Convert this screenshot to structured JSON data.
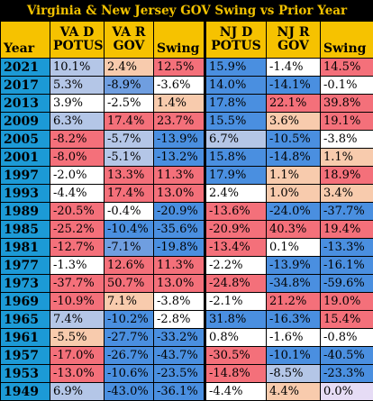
{
  "title": "Virginia & New Jersey GOV Swing vs Prior Year",
  "headers": [
    {
      "line1": "Year",
      "line2": ""
    },
    {
      "line1": "VA D",
      "line2": "POTUS"
    },
    {
      "line1": "VA R",
      "line2": "GOV"
    },
    {
      "line1": "Swing",
      "line2": ""
    },
    {
      "line1": "NJ D",
      "line2": "POTUS"
    },
    {
      "line1": "NJ R",
      "line2": "GOV"
    },
    {
      "line1": "Swing",
      "line2": ""
    }
  ],
  "rows": [
    {
      "year": "2021",
      "cells": [
        {
          "t": "10.1%",
          "c": "#b4c6e7"
        },
        {
          "t": "2.4%",
          "c": "#f8cbad"
        },
        {
          "t": "12.5%",
          "c": "#f4707a"
        },
        {
          "t": "15.9%",
          "c": "#4a8fe0"
        },
        {
          "t": "-1.4%",
          "c": "#ffffff"
        },
        {
          "t": "14.5%",
          "c": "#f4707a"
        }
      ]
    },
    {
      "year": "2017",
      "cells": [
        {
          "t": "5.3%",
          "c": "#b4c6e7"
        },
        {
          "t": "-8.9%",
          "c": "#6f9ee0"
        },
        {
          "t": "-3.6%",
          "c": "#ffffff"
        },
        {
          "t": "14.0%",
          "c": "#4a8fe0"
        },
        {
          "t": "-14.1%",
          "c": "#4a8fe0"
        },
        {
          "t": "-0.1%",
          "c": "#ffffff"
        }
      ]
    },
    {
      "year": "2013",
      "cells": [
        {
          "t": "3.9%",
          "c": "#ffffff"
        },
        {
          "t": "-2.5%",
          "c": "#ffffff"
        },
        {
          "t": "1.4%",
          "c": "#f8cbad"
        },
        {
          "t": "17.8%",
          "c": "#4a8fe0"
        },
        {
          "t": "22.1%",
          "c": "#f4707a"
        },
        {
          "t": "39.8%",
          "c": "#f4707a"
        }
      ]
    },
    {
      "year": "2009",
      "cells": [
        {
          "t": "6.3%",
          "c": "#b4c6e7"
        },
        {
          "t": "17.4%",
          "c": "#f4707a"
        },
        {
          "t": "23.7%",
          "c": "#f4707a"
        },
        {
          "t": "15.5%",
          "c": "#4a8fe0"
        },
        {
          "t": "3.6%",
          "c": "#f8cbad"
        },
        {
          "t": "19.1%",
          "c": "#f4707a"
        }
      ]
    },
    {
      "year": "2005",
      "cells": [
        {
          "t": "-8.2%",
          "c": "#f4707a"
        },
        {
          "t": "-5.7%",
          "c": "#b4c6e7"
        },
        {
          "t": "-13.9%",
          "c": "#4a8fe0"
        },
        {
          "t": "6.7%",
          "c": "#b4c6e7"
        },
        {
          "t": "-10.5%",
          "c": "#4a8fe0"
        },
        {
          "t": "-3.8%",
          "c": "#ffffff"
        }
      ]
    },
    {
      "year": "2001",
      "cells": [
        {
          "t": "-8.0%",
          "c": "#f4707a"
        },
        {
          "t": "-5.1%",
          "c": "#b4c6e7"
        },
        {
          "t": "-13.2%",
          "c": "#4a8fe0"
        },
        {
          "t": "15.8%",
          "c": "#4a8fe0"
        },
        {
          "t": "-14.8%",
          "c": "#4a8fe0"
        },
        {
          "t": "1.1%",
          "c": "#f8cbad"
        }
      ]
    },
    {
      "year": "1997",
      "cells": [
        {
          "t": "-2.0%",
          "c": "#ffffff"
        },
        {
          "t": "13.3%",
          "c": "#f4707a"
        },
        {
          "t": "11.3%",
          "c": "#f4707a"
        },
        {
          "t": "17.9%",
          "c": "#4a8fe0"
        },
        {
          "t": "1.1%",
          "c": "#f8cbad"
        },
        {
          "t": "18.9%",
          "c": "#f4707a"
        }
      ]
    },
    {
      "year": "1993",
      "cells": [
        {
          "t": "-4.4%",
          "c": "#ffffff"
        },
        {
          "t": "17.4%",
          "c": "#f4707a"
        },
        {
          "t": "13.0%",
          "c": "#f4707a"
        },
        {
          "t": "2.4%",
          "c": "#ffffff"
        },
        {
          "t": "1.0%",
          "c": "#f8cbad"
        },
        {
          "t": "3.4%",
          "c": "#f8cbad"
        }
      ]
    },
    {
      "year": "1989",
      "cells": [
        {
          "t": "-20.5%",
          "c": "#f4707a"
        },
        {
          "t": "-0.4%",
          "c": "#ffffff"
        },
        {
          "t": "-20.9%",
          "c": "#4a8fe0"
        },
        {
          "t": "-13.6%",
          "c": "#f4707a"
        },
        {
          "t": "-24.0%",
          "c": "#4a8fe0"
        },
        {
          "t": "-37.7%",
          "c": "#4a8fe0"
        }
      ]
    },
    {
      "year": "1985",
      "cells": [
        {
          "t": "-25.2%",
          "c": "#f4707a"
        },
        {
          "t": "-10.4%",
          "c": "#4a8fe0"
        },
        {
          "t": "-35.6%",
          "c": "#4a8fe0"
        },
        {
          "t": "-20.9%",
          "c": "#f4707a"
        },
        {
          "t": "40.3%",
          "c": "#f4707a"
        },
        {
          "t": "19.4%",
          "c": "#f4707a"
        }
      ]
    },
    {
      "year": "1981",
      "cells": [
        {
          "t": "-12.7%",
          "c": "#f4707a"
        },
        {
          "t": "-7.1%",
          "c": "#6f9ee0"
        },
        {
          "t": "-19.8%",
          "c": "#4a8fe0"
        },
        {
          "t": "-13.4%",
          "c": "#f4707a"
        },
        {
          "t": "0.1%",
          "c": "#ffffff"
        },
        {
          "t": "-13.3%",
          "c": "#4a8fe0"
        }
      ]
    },
    {
      "year": "1977",
      "cells": [
        {
          "t": "-1.3%",
          "c": "#ffffff"
        },
        {
          "t": "12.6%",
          "c": "#f4707a"
        },
        {
          "t": "11.3%",
          "c": "#f4707a"
        },
        {
          "t": "-2.2%",
          "c": "#ffffff"
        },
        {
          "t": "-13.9%",
          "c": "#4a8fe0"
        },
        {
          "t": "-16.1%",
          "c": "#4a8fe0"
        }
      ]
    },
    {
      "year": "1973",
      "cells": [
        {
          "t": "-37.7%",
          "c": "#f4707a"
        },
        {
          "t": "50.7%",
          "c": "#f4707a"
        },
        {
          "t": "13.0%",
          "c": "#f4707a"
        },
        {
          "t": "-24.8%",
          "c": "#f4707a"
        },
        {
          "t": "-34.8%",
          "c": "#4a8fe0"
        },
        {
          "t": "-59.6%",
          "c": "#4a8fe0"
        }
      ]
    },
    {
      "year": "1969",
      "cells": [
        {
          "t": "-10.9%",
          "c": "#f4707a"
        },
        {
          "t": "7.1%",
          "c": "#f8cbad"
        },
        {
          "t": "-3.8%",
          "c": "#ffffff"
        },
        {
          "t": "-2.1%",
          "c": "#ffffff"
        },
        {
          "t": "21.2%",
          "c": "#f4707a"
        },
        {
          "t": "19.0%",
          "c": "#f4707a"
        }
      ]
    },
    {
      "year": "1965",
      "cells": [
        {
          "t": "7.4%",
          "c": "#b4c6e7"
        },
        {
          "t": "-10.2%",
          "c": "#4a8fe0"
        },
        {
          "t": "-2.8%",
          "c": "#ffffff"
        },
        {
          "t": "31.8%",
          "c": "#4a8fe0"
        },
        {
          "t": "-16.3%",
          "c": "#4a8fe0"
        },
        {
          "t": "15.4%",
          "c": "#f4707a"
        }
      ]
    },
    {
      "year": "1961",
      "cells": [
        {
          "t": "-5.5%",
          "c": "#f8cbad"
        },
        {
          "t": "-27.7%",
          "c": "#4a8fe0"
        },
        {
          "t": "-33.2%",
          "c": "#4a8fe0"
        },
        {
          "t": "0.8%",
          "c": "#ffffff"
        },
        {
          "t": "-1.6%",
          "c": "#ffffff"
        },
        {
          "t": "-0.8%",
          "c": "#ffffff"
        }
      ]
    },
    {
      "year": "1957",
      "cells": [
        {
          "t": "-17.0%",
          "c": "#f4707a"
        },
        {
          "t": "-26.7%",
          "c": "#4a8fe0"
        },
        {
          "t": "-43.7%",
          "c": "#4a8fe0"
        },
        {
          "t": "-30.5%",
          "c": "#f4707a"
        },
        {
          "t": "-10.1%",
          "c": "#4a8fe0"
        },
        {
          "t": "-40.5%",
          "c": "#4a8fe0"
        }
      ]
    },
    {
      "year": "1953",
      "cells": [
        {
          "t": "-13.0%",
          "c": "#f4707a"
        },
        {
          "t": "-10.6%",
          "c": "#4a8fe0"
        },
        {
          "t": "-23.5%",
          "c": "#4a8fe0"
        },
        {
          "t": "-14.8%",
          "c": "#f4707a"
        },
        {
          "t": "-8.5%",
          "c": "#b4c6e7"
        },
        {
          "t": "-23.3%",
          "c": "#4a8fe0"
        }
      ]
    },
    {
      "year": "1949",
      "cells": [
        {
          "t": "6.9%",
          "c": "#b4c6e7"
        },
        {
          "t": "-43.0%",
          "c": "#4a8fe0"
        },
        {
          "t": "-36.1%",
          "c": "#4a8fe0"
        },
        {
          "t": "-4.4%",
          "c": "#ffffff"
        },
        {
          "t": "4.4%",
          "c": "#f8cbad"
        },
        {
          "t": "0.0%",
          "c": "#e6dcf5"
        }
      ]
    }
  ],
  "colors": {
    "title_bg": "#000000",
    "title_text": "#f2c200",
    "header_bg": "#f6c200",
    "year_bg": "#1c9ad6"
  }
}
